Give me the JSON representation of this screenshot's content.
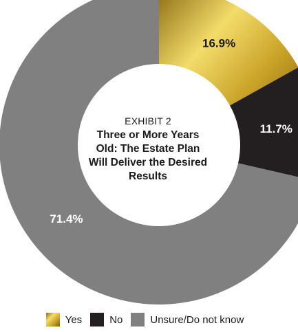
{
  "chart_data": {
    "type": "pie",
    "subtitle": "EXHIBIT 2",
    "title": "Three or More Years Old: The Estate Plan Will Deliver the Desired Results",
    "slices": [
      {
        "name": "Yes",
        "value": 16.9,
        "label": "16.9%",
        "color": "#c9a227",
        "label_color": "#1a1a1a"
      },
      {
        "name": "No",
        "value": 11.7,
        "label": "11.7%",
        "color": "#231f20",
        "label_color": "#ffffff"
      },
      {
        "name": "Unsure/Do not know",
        "value": 71.4,
        "label": "71.4%",
        "color": "#808080",
        "label_color": "#ffffff"
      }
    ],
    "legend_position": "bottom"
  }
}
